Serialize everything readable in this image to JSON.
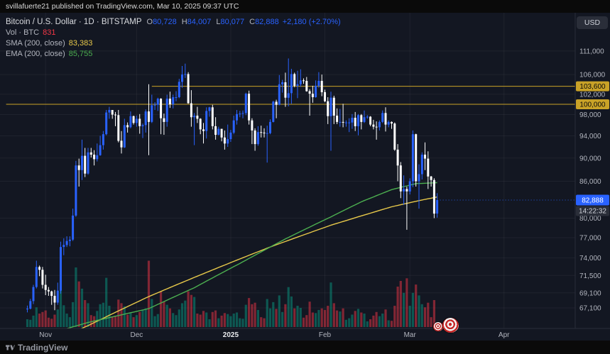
{
  "publication_bar": {
    "text": "svillafuerte21 published on TradingView.com, Mar 10, 2025 09:37 UTC"
  },
  "legend": {
    "title": "Bitcoin / U.S. Dollar · 1D · BITSTAMP",
    "ohlc": {
      "o_label": "O",
      "o": "80,728",
      "h_label": "H",
      "h": "84,007",
      "l_label": "L",
      "l": "80,077",
      "c_label": "C",
      "c": "82,888",
      "change": "+2,180 (+2.70%)"
    },
    "volume": {
      "label": "Vol · BTC",
      "value": "831"
    },
    "sma": {
      "label": "SMA (200, close)",
      "value": "83,383"
    },
    "ema": {
      "label": "EMA (200, close)",
      "value": "85,755"
    }
  },
  "axis": {
    "currency_button": "USD",
    "price_ticks": [
      111000,
      106000,
      102000,
      98000,
      94000,
      90000,
      86000,
      80000,
      77000,
      74000,
      71500,
      69100,
      67100
    ],
    "current_price": 82888,
    "countdown": "14:22:32",
    "time_ticks": [
      {
        "label": "Nov",
        "index": 6
      },
      {
        "label": "Dec",
        "index": 36
      },
      {
        "label": "2025",
        "index": 67,
        "emphasis": true
      },
      {
        "label": "Feb",
        "index": 98
      },
      {
        "label": "Mar",
        "index": 126
      },
      {
        "label": "Apr",
        "index": 157
      }
    ]
  },
  "footer": {
    "brand": "TradingView"
  },
  "colors": {
    "up": "#2962FF",
    "down": "#FFFFFF",
    "vol_up": "#089981",
    "vol_down": "#F23645",
    "sma": "#E8C94A",
    "ema": "#4CAF50",
    "ray": "#C9A227",
    "current_price_bg": "#2962FF",
    "countdown_bg": "#2A2E39",
    "axis_text": "#B2B5BE",
    "background": "#131722"
  },
  "chart_data": {
    "type": "candlestick",
    "title": "Bitcoin / U.S. Dollar · 1D · BITSTAMP",
    "scale": "logarithmic",
    "interval": "1D",
    "start_date": "2024-10-26",
    "end_date": "2025-03-10",
    "visible_price_range": [
      66000,
      113000
    ],
    "last_price": 82888,
    "columns": [
      "open",
      "high",
      "low",
      "close",
      "volume_btc"
    ],
    "ohlcv": [
      [
        66900,
        67400,
        66500,
        67000,
        1500
      ],
      [
        67000,
        68300,
        66900,
        68000,
        1400
      ],
      [
        68000,
        70200,
        67600,
        69900,
        2200
      ],
      [
        69900,
        73600,
        69700,
        72700,
        3800
      ],
      [
        72700,
        72900,
        71400,
        72300,
        2600
      ],
      [
        72300,
        72700,
        69700,
        70200,
        2900
      ],
      [
        70200,
        71600,
        68800,
        69500,
        3200
      ],
      [
        69500,
        69900,
        68700,
        69300,
        1800
      ],
      [
        69300,
        69400,
        67500,
        68700,
        1600
      ],
      [
        68700,
        69500,
        66800,
        67800,
        2400
      ],
      [
        67800,
        70500,
        67500,
        69400,
        3400
      ],
      [
        69400,
        76400,
        69000,
        75600,
        9000
      ],
      [
        75600,
        76900,
        74400,
        75900,
        4200
      ],
      [
        75900,
        77200,
        75600,
        76500,
        2600
      ],
      [
        76500,
        77200,
        75700,
        76700,
        1900
      ],
      [
        76700,
        81500,
        76500,
        80400,
        4800
      ],
      [
        80400,
        89500,
        80200,
        88700,
        11500
      ],
      [
        88700,
        89900,
        85100,
        87900,
        8800
      ],
      [
        87900,
        93300,
        86200,
        90400,
        7400
      ],
      [
        90400,
        91800,
        86700,
        87300,
        5200
      ],
      [
        87300,
        91800,
        87100,
        91000,
        4600
      ],
      [
        91000,
        91800,
        90100,
        90600,
        2300
      ],
      [
        90600,
        91400,
        88700,
        89800,
        2100
      ],
      [
        89800,
        92600,
        89400,
        90500,
        3100
      ],
      [
        90500,
        94000,
        90400,
        92300,
        4400
      ],
      [
        92300,
        94900,
        91500,
        94300,
        4700
      ],
      [
        94300,
        98900,
        94100,
        98400,
        9500
      ],
      [
        98400,
        99500,
        97200,
        98900,
        4100
      ],
      [
        98900,
        98900,
        97200,
        98000,
        2000
      ],
      [
        98000,
        98500,
        95800,
        97900,
        2200
      ],
      [
        97900,
        98900,
        92800,
        93100,
        5300
      ],
      [
        93100,
        94900,
        90800,
        91900,
        4600
      ],
      [
        91900,
        97200,
        91800,
        96000,
        4000
      ],
      [
        96000,
        96500,
        94600,
        95600,
        2400
      ],
      [
        95600,
        98600,
        95400,
        97700,
        2800
      ],
      [
        97700,
        97800,
        96100,
        96400,
        1900
      ],
      [
        96400,
        97800,
        95700,
        97200,
        2300
      ],
      [
        97200,
        98100,
        94400,
        95800,
        2900
      ],
      [
        95800,
        96300,
        93600,
        96000,
        3400
      ],
      [
        96000,
        99000,
        94600,
        98600,
        3600
      ],
      [
        98600,
        104000,
        90500,
        96600,
        12800
      ],
      [
        96600,
        101900,
        96400,
        99800,
        5400
      ],
      [
        99800,
        100400,
        98900,
        99900,
        2100
      ],
      [
        99900,
        101300,
        98700,
        101100,
        2500
      ],
      [
        101100,
        101200,
        94300,
        97300,
        6800
      ],
      [
        97300,
        98200,
        94200,
        96600,
        4900
      ],
      [
        96600,
        101900,
        95700,
        101100,
        4300
      ],
      [
        101100,
        102500,
        99300,
        100000,
        3600
      ],
      [
        100000,
        101900,
        99200,
        101400,
        2700
      ],
      [
        101400,
        102600,
        100600,
        101400,
        2300
      ],
      [
        101400,
        105100,
        101200,
        104500,
        3400
      ],
      [
        104500,
        107800,
        103300,
        106000,
        4600
      ],
      [
        106000,
        108300,
        105300,
        106100,
        5100
      ],
      [
        106100,
        106500,
        100100,
        100200,
        6900
      ],
      [
        100200,
        102800,
        95700,
        97500,
        6200
      ],
      [
        97500,
        98300,
        92300,
        97800,
        5800
      ],
      [
        97800,
        99500,
        96400,
        97200,
        2600
      ],
      [
        97200,
        97300,
        94300,
        95200,
        2400
      ],
      [
        95200,
        96400,
        92600,
        94900,
        3100
      ],
      [
        94900,
        99400,
        93500,
        98700,
        2800
      ],
      [
        98700,
        99500,
        97600,
        99400,
        1500
      ],
      [
        99400,
        99900,
        95200,
        95800,
        2900
      ],
      [
        95800,
        97500,
        93300,
        94200,
        3200
      ],
      [
        94200,
        95700,
        94100,
        95300,
        1700
      ],
      [
        95300,
        95300,
        93000,
        93700,
        2200
      ],
      [
        93700,
        95000,
        91500,
        92600,
        2700
      ],
      [
        92600,
        96100,
        92000,
        93400,
        2500
      ],
      [
        93400,
        95100,
        92900,
        94600,
        2100
      ],
      [
        94600,
        97800,
        94300,
        96900,
        2600
      ],
      [
        96900,
        98900,
        96100,
        98100,
        2800
      ],
      [
        98100,
        98700,
        97500,
        98200,
        1700
      ],
      [
        98200,
        98800,
        97300,
        98300,
        1600
      ],
      [
        98300,
        102300,
        97900,
        102100,
        4300
      ],
      [
        102100,
        102700,
        96100,
        96900,
        5600
      ],
      [
        96900,
        97300,
        92500,
        95000,
        4400
      ],
      [
        95000,
        95400,
        91300,
        92500,
        4700
      ],
      [
        92500,
        95800,
        92200,
        94700,
        3300
      ],
      [
        94700,
        95900,
        93700,
        94600,
        1900
      ],
      [
        94600,
        95400,
        93700,
        94500,
        1700
      ],
      [
        94500,
        95900,
        89200,
        94500,
        5400
      ],
      [
        94500,
        97100,
        94300,
        96600,
        3600
      ],
      [
        96600,
        100700,
        96500,
        100500,
        4800
      ],
      [
        100500,
        100900,
        97300,
        99900,
        3500
      ],
      [
        99900,
        105900,
        99800,
        104000,
        6100
      ],
      [
        104000,
        104900,
        102300,
        104400,
        2900
      ],
      [
        104400,
        106400,
        99500,
        101300,
        4400
      ],
      [
        101300,
        109400,
        99600,
        102200,
        7700
      ],
      [
        102200,
        107200,
        100100,
        106100,
        5900
      ],
      [
        106100,
        106400,
        103400,
        103700,
        3600
      ],
      [
        103700,
        106800,
        101200,
        104000,
        4100
      ],
      [
        104000,
        107100,
        103500,
        104800,
        3700
      ],
      [
        104800,
        105200,
        104100,
        104700,
        1800
      ],
      [
        104700,
        105500,
        102500,
        102600,
        2300
      ],
      [
        102600,
        103000,
        97800,
        102100,
        4900
      ],
      [
        102100,
        103700,
        100300,
        101400,
        2800
      ],
      [
        101400,
        104800,
        101300,
        103700,
        2700
      ],
      [
        103700,
        106500,
        103300,
        104700,
        3300
      ],
      [
        104700,
        106000,
        101600,
        102400,
        3600
      ],
      [
        102400,
        102900,
        100400,
        100600,
        3300
      ],
      [
        100600,
        101400,
        96200,
        97700,
        4100
      ],
      [
        97700,
        102500,
        91300,
        101300,
        8600
      ],
      [
        101300,
        101700,
        96200,
        97800,
        4600
      ],
      [
        97800,
        99200,
        96200,
        96600,
        3200
      ],
      [
        96600,
        99100,
        95700,
        96600,
        3000
      ],
      [
        96600,
        100100,
        95600,
        96500,
        3600
      ],
      [
        96500,
        96900,
        95700,
        96500,
        1400
      ],
      [
        96500,
        97300,
        94700,
        96500,
        1700
      ],
      [
        96500,
        98100,
        95300,
        97400,
        2400
      ],
      [
        97400,
        98500,
        94900,
        95800,
        3100
      ],
      [
        95800,
        98100,
        94100,
        97900,
        3500
      ],
      [
        97900,
        98100,
        95200,
        96600,
        2800
      ],
      [
        96600,
        98800,
        96400,
        97500,
        2600
      ],
      [
        97500,
        97900,
        97200,
        97600,
        1100
      ],
      [
        97600,
        97700,
        95800,
        96100,
        1500
      ],
      [
        96100,
        97000,
        95200,
        95700,
        2200
      ],
      [
        95700,
        96700,
        93300,
        95600,
        2900
      ],
      [
        95600,
        96900,
        95000,
        96600,
        2100
      ],
      [
        96600,
        98800,
        96400,
        98300,
        2600
      ],
      [
        98300,
        99400,
        94800,
        96100,
        3400
      ],
      [
        96100,
        96900,
        95600,
        96600,
        1300
      ],
      [
        96600,
        96700,
        95300,
        96300,
        1200
      ],
      [
        96300,
        96500,
        91300,
        91500,
        4100
      ],
      [
        91500,
        92500,
        86000,
        88700,
        7800
      ],
      [
        88700,
        89300,
        83200,
        84300,
        8900
      ],
      [
        84300,
        87000,
        82100,
        84700,
        6600
      ],
      [
        84700,
        85100,
        78200,
        84300,
        9400
      ],
      [
        84300,
        86500,
        83800,
        86000,
        4100
      ],
      [
        86000,
        95000,
        85000,
        94300,
        6600
      ],
      [
        94300,
        94400,
        85100,
        86000,
        8200
      ],
      [
        86000,
        88900,
        81500,
        87200,
        6100
      ],
      [
        87200,
        91000,
        86300,
        90600,
        4400
      ],
      [
        90600,
        92800,
        87900,
        89900,
        3800
      ],
      [
        89900,
        91200,
        84700,
        86800,
        4700
      ],
      [
        86800,
        86900,
        85100,
        86200,
        1900
      ],
      [
        86200,
        86500,
        80000,
        80708,
        5200
      ],
      [
        80728,
        84007,
        80077,
        82888,
        831
      ]
    ],
    "overlays": [
      {
        "name": "SMA (200, close)",
        "color": "#E8C94A",
        "last_value": 83383,
        "points": [
          [
            0,
            61500
          ],
          [
            20,
            64800
          ],
          [
            40,
            68600
          ],
          [
            60,
            72100
          ],
          [
            80,
            75600
          ],
          [
            100,
            78900
          ],
          [
            120,
            81800
          ],
          [
            130,
            82900
          ],
          [
            135,
            83383
          ]
        ]
      },
      {
        "name": "EMA (200, close)",
        "color": "#4CAF50",
        "last_value": 85755,
        "points": [
          [
            0,
            63000
          ],
          [
            20,
            65200
          ],
          [
            40,
            67000
          ],
          [
            55,
            69800
          ],
          [
            70,
            73200
          ],
          [
            85,
            76800
          ],
          [
            100,
            80200
          ],
          [
            110,
            82600
          ],
          [
            120,
            84600
          ],
          [
            128,
            85600
          ],
          [
            135,
            85755
          ]
        ]
      }
    ],
    "horizontal_lines": [
      {
        "price": 103600,
        "label": "103,600",
        "from_index": 41
      },
      {
        "price": 100000,
        "label": "100,000",
        "from_index": -7
      }
    ]
  }
}
